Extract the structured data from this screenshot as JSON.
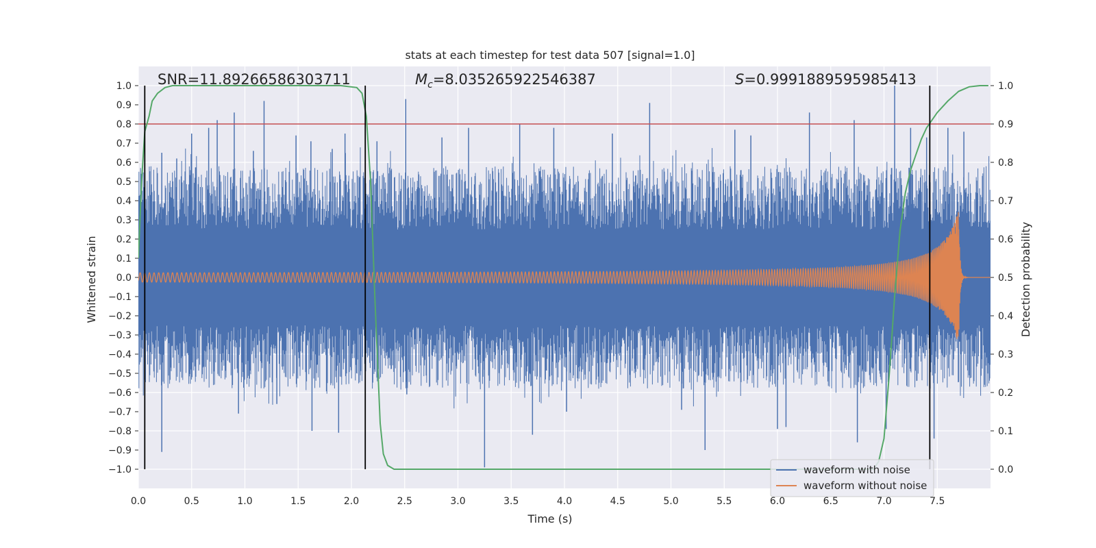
{
  "chart_data": {
    "type": "line",
    "title": "stats at each timestep for test data 507 [signal=1.0]",
    "xlabel": "Time (s)",
    "ylabel": "Whitened strain",
    "y2label": "Detection probability",
    "xlim": [
      0.0,
      8.0
    ],
    "ylim": [
      -1.1,
      1.1
    ],
    "y2lim": [
      -0.05,
      1.05
    ],
    "x_ticks": [
      0.0,
      0.5,
      1.0,
      1.5,
      2.0,
      2.5,
      3.0,
      3.5,
      4.0,
      4.5,
      5.0,
      5.5,
      6.0,
      6.5,
      7.0,
      7.5
    ],
    "x_tick_labels": [
      "0.0",
      "0.5",
      "1.0",
      "1.5",
      "2.0",
      "2.5",
      "3.0",
      "3.5",
      "4.0",
      "4.5",
      "5.0",
      "5.5",
      "6.0",
      "6.5",
      "7.0",
      "7.5"
    ],
    "y_ticks": [
      1.0,
      0.9,
      0.8,
      0.7,
      0.6,
      0.5,
      0.4,
      0.3,
      0.2,
      0.1,
      0.0,
      -0.1,
      -0.2,
      -0.3,
      -0.4,
      -0.5,
      -0.6,
      -0.7,
      -0.8,
      -0.9,
      -1.0
    ],
    "y_tick_labels": [
      "1.0",
      "0.9",
      "0.8",
      "0.7",
      "0.6",
      "0.5",
      "0.4",
      "0.3",
      "0.2",
      "0.1",
      "0.0",
      "−0.1",
      "−0.2",
      "−0.3",
      "−0.4",
      "−0.5",
      "−0.6",
      "−0.7",
      "−0.8",
      "−0.9",
      "−1.0"
    ],
    "y2_ticks": [
      1.0,
      0.9,
      0.8,
      0.7,
      0.6,
      0.5,
      0.4,
      0.3,
      0.2,
      0.1,
      0.0
    ],
    "y2_tick_labels": [
      "1.0",
      "0.9",
      "0.8",
      "0.7",
      "0.6",
      "0.5",
      "0.4",
      "0.3",
      "0.2",
      "0.1",
      "0.0"
    ],
    "annotations": {
      "snr": "SNR=11.89266586303711",
      "mc_symbol": "M",
      "mc_sub": "c",
      "mc_value": "=8.035265922546387",
      "s_symbol": "S",
      "s_value": "=0.9991889595985413"
    },
    "threshold_line": {
      "y2": 0.9,
      "color": "#c44e52"
    },
    "vertical_lines": [
      0.06,
      2.13,
      7.43
    ],
    "colors": {
      "noise": "#4c72b0",
      "signal": "#dd8452",
      "probability": "#55a868",
      "plot_bg": "#eaeaf2",
      "grid": "#ffffff",
      "vline": "#000000"
    },
    "series": [
      {
        "name": "waveform with noise",
        "description": "dense noisy strain, envelope approx +/-0.6 with spikes to +/-1.0",
        "spikes": [
          [
            0.06,
            -0.78
          ],
          [
            0.22,
            0.65
          ],
          [
            0.22,
            -0.91
          ],
          [
            0.36,
            0.62
          ],
          [
            0.5,
            0.75
          ],
          [
            0.66,
            0.78
          ],
          [
            0.74,
            0.82
          ],
          [
            0.9,
            0.86
          ],
          [
            0.94,
            -0.71
          ],
          [
            1.08,
            0.66
          ],
          [
            1.18,
            0.92
          ],
          [
            1.3,
            -0.66
          ],
          [
            1.48,
            0.74
          ],
          [
            1.62,
            0.71
          ],
          [
            1.63,
            -0.8
          ],
          [
            1.82,
            0.67
          ],
          [
            1.88,
            -0.81
          ],
          [
            1.94,
            0.75
          ],
          [
            2.24,
            0.71
          ],
          [
            2.51,
            0.93
          ],
          [
            2.52,
            -0.61
          ],
          [
            2.85,
            0.73
          ],
          [
            3.1,
            0.78
          ],
          [
            3.25,
            -0.99
          ],
          [
            3.58,
            0.8
          ],
          [
            3.7,
            -0.82
          ],
          [
            3.9,
            0.78
          ],
          [
            4.02,
            -0.7
          ],
          [
            4.45,
            0.75
          ],
          [
            4.8,
            0.91
          ],
          [
            5.1,
            -0.69
          ],
          [
            5.32,
            -0.9
          ],
          [
            5.6,
            0.77
          ],
          [
            5.75,
            0.74
          ],
          [
            6.0,
            -0.79
          ],
          [
            6.08,
            -0.78
          ],
          [
            6.3,
            0.86
          ],
          [
            6.72,
            0.82
          ],
          [
            6.75,
            -0.86
          ],
          [
            7.02,
            -0.79
          ],
          [
            7.1,
            1.0
          ],
          [
            7.25,
            0.78
          ],
          [
            7.4,
            0.73
          ],
          [
            7.47,
            -0.84
          ],
          [
            7.6,
            0.78
          ],
          [
            7.75,
            0.76
          ]
        ]
      },
      {
        "name": "waveform without noise",
        "description": "chirp with amplitude about 0.02 growing to 0.38 near 7.70 s, then ringdown to 0",
        "merger_time": 7.7,
        "peak_amplitude": 0.38,
        "initial_amplitude": 0.02
      },
      {
        "name": "detection probability",
        "axis": "y2",
        "x": [
          0.0,
          0.03,
          0.06,
          0.1,
          0.13,
          0.18,
          0.25,
          0.32,
          0.4,
          0.6,
          1.0,
          1.5,
          1.9,
          2.05,
          2.1,
          2.14,
          2.18,
          2.22,
          2.25,
          2.27,
          2.3,
          2.34,
          2.4,
          2.6,
          3.0,
          4.0,
          5.0,
          6.0,
          6.5,
          6.9,
          6.95,
          7.0,
          7.05,
          7.1,
          7.15,
          7.2,
          7.25,
          7.3,
          7.35,
          7.4,
          7.5,
          7.6,
          7.7,
          7.8,
          7.9,
          7.98
        ],
        "y": [
          0.55,
          0.75,
          0.88,
          0.92,
          0.96,
          0.98,
          0.995,
          1.0,
          1.0,
          1.0,
          1.0,
          1.0,
          1.0,
          0.995,
          0.98,
          0.92,
          0.75,
          0.45,
          0.25,
          0.12,
          0.04,
          0.01,
          0.0,
          0.0,
          0.0,
          0.0,
          0.0,
          0.0,
          0.0,
          0.0,
          0.02,
          0.08,
          0.25,
          0.45,
          0.62,
          0.72,
          0.78,
          0.82,
          0.86,
          0.89,
          0.93,
          0.96,
          0.985,
          0.997,
          1.0,
          1.0
        ]
      }
    ],
    "legend": {
      "position": "lower-right",
      "entries": [
        {
          "label": "waveform with noise",
          "color": "#4c72b0"
        },
        {
          "label": "waveform without noise",
          "color": "#dd8452"
        }
      ]
    }
  }
}
